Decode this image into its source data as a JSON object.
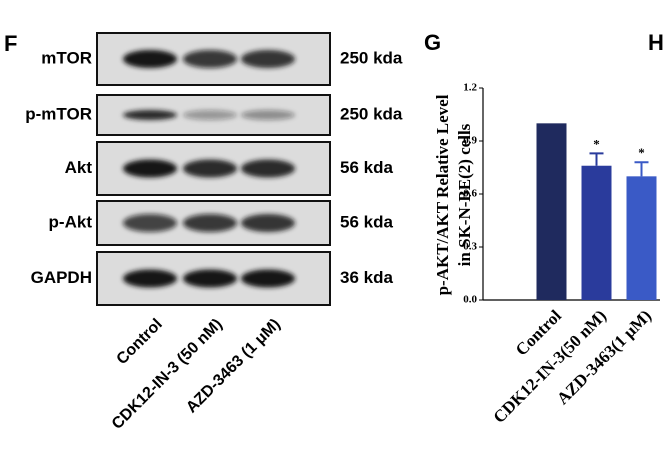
{
  "panels": [
    "F",
    "G",
    "H"
  ],
  "blot": {
    "rows": [
      {
        "protein": "mTOR",
        "size": "250 kda"
      },
      {
        "protein": "p-mTOR",
        "size": "250 kda"
      },
      {
        "protein": "Akt",
        "size": "56 kda"
      },
      {
        "protein": "p-Akt",
        "size": "56 kda"
      },
      {
        "protein": "GAPDH",
        "size": "36 kda"
      }
    ],
    "lanes": [
      "Control",
      "CDK12-IN-3 (50 nM)",
      "AZD-3463 (1 μM)"
    ]
  },
  "chart_data": {
    "type": "bar",
    "y_label": [
      "p-AKT/AKT Relative Level",
      "in SK-N-BE(2) cells"
    ],
    "categories": [
      "Control",
      "CDK12-IN-3(50 nM)",
      "AZD-3463(1 μM)"
    ],
    "values": [
      1.0,
      0.76,
      0.7
    ],
    "errors": [
      0,
      0.07,
      0.08
    ],
    "colors": [
      "#1f2a5e",
      "#2a3b9c",
      "#3a5ac6"
    ],
    "annotations": [
      null,
      "*",
      "*"
    ],
    "ylim": [
      0,
      1.2
    ],
    "yticks": [
      {
        "value": 0,
        "label": "0.0"
      },
      0.3,
      0.6,
      0.9,
      1.2
    ]
  }
}
